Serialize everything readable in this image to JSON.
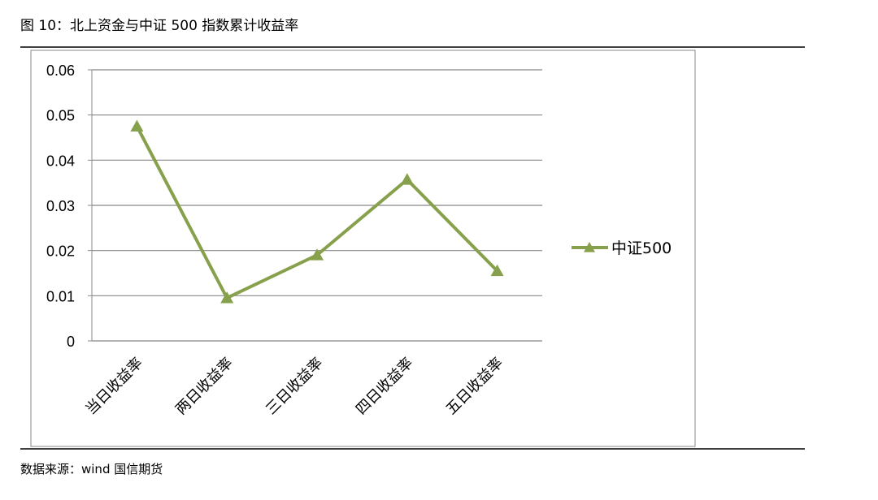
{
  "chart_data": {
    "type": "line",
    "title": "图 10：北上资金与中证 500 指数累计收益率",
    "source": "数据来源：wind   国信期货",
    "categories": [
      "当日收益率",
      "两日收益率",
      "三日收益率",
      "四日收益率",
      "五日收益率"
    ],
    "series": [
      {
        "name": "中证500",
        "color": "#86a04b",
        "values": [
          0.0475,
          0.0095,
          0.019,
          0.0357,
          0.0155
        ]
      }
    ],
    "ylim": [
      0,
      0.06
    ],
    "yticks": [
      0,
      0.01,
      0.02,
      0.03,
      0.04,
      0.05,
      0.06
    ],
    "grid": true,
    "legend": "right"
  }
}
